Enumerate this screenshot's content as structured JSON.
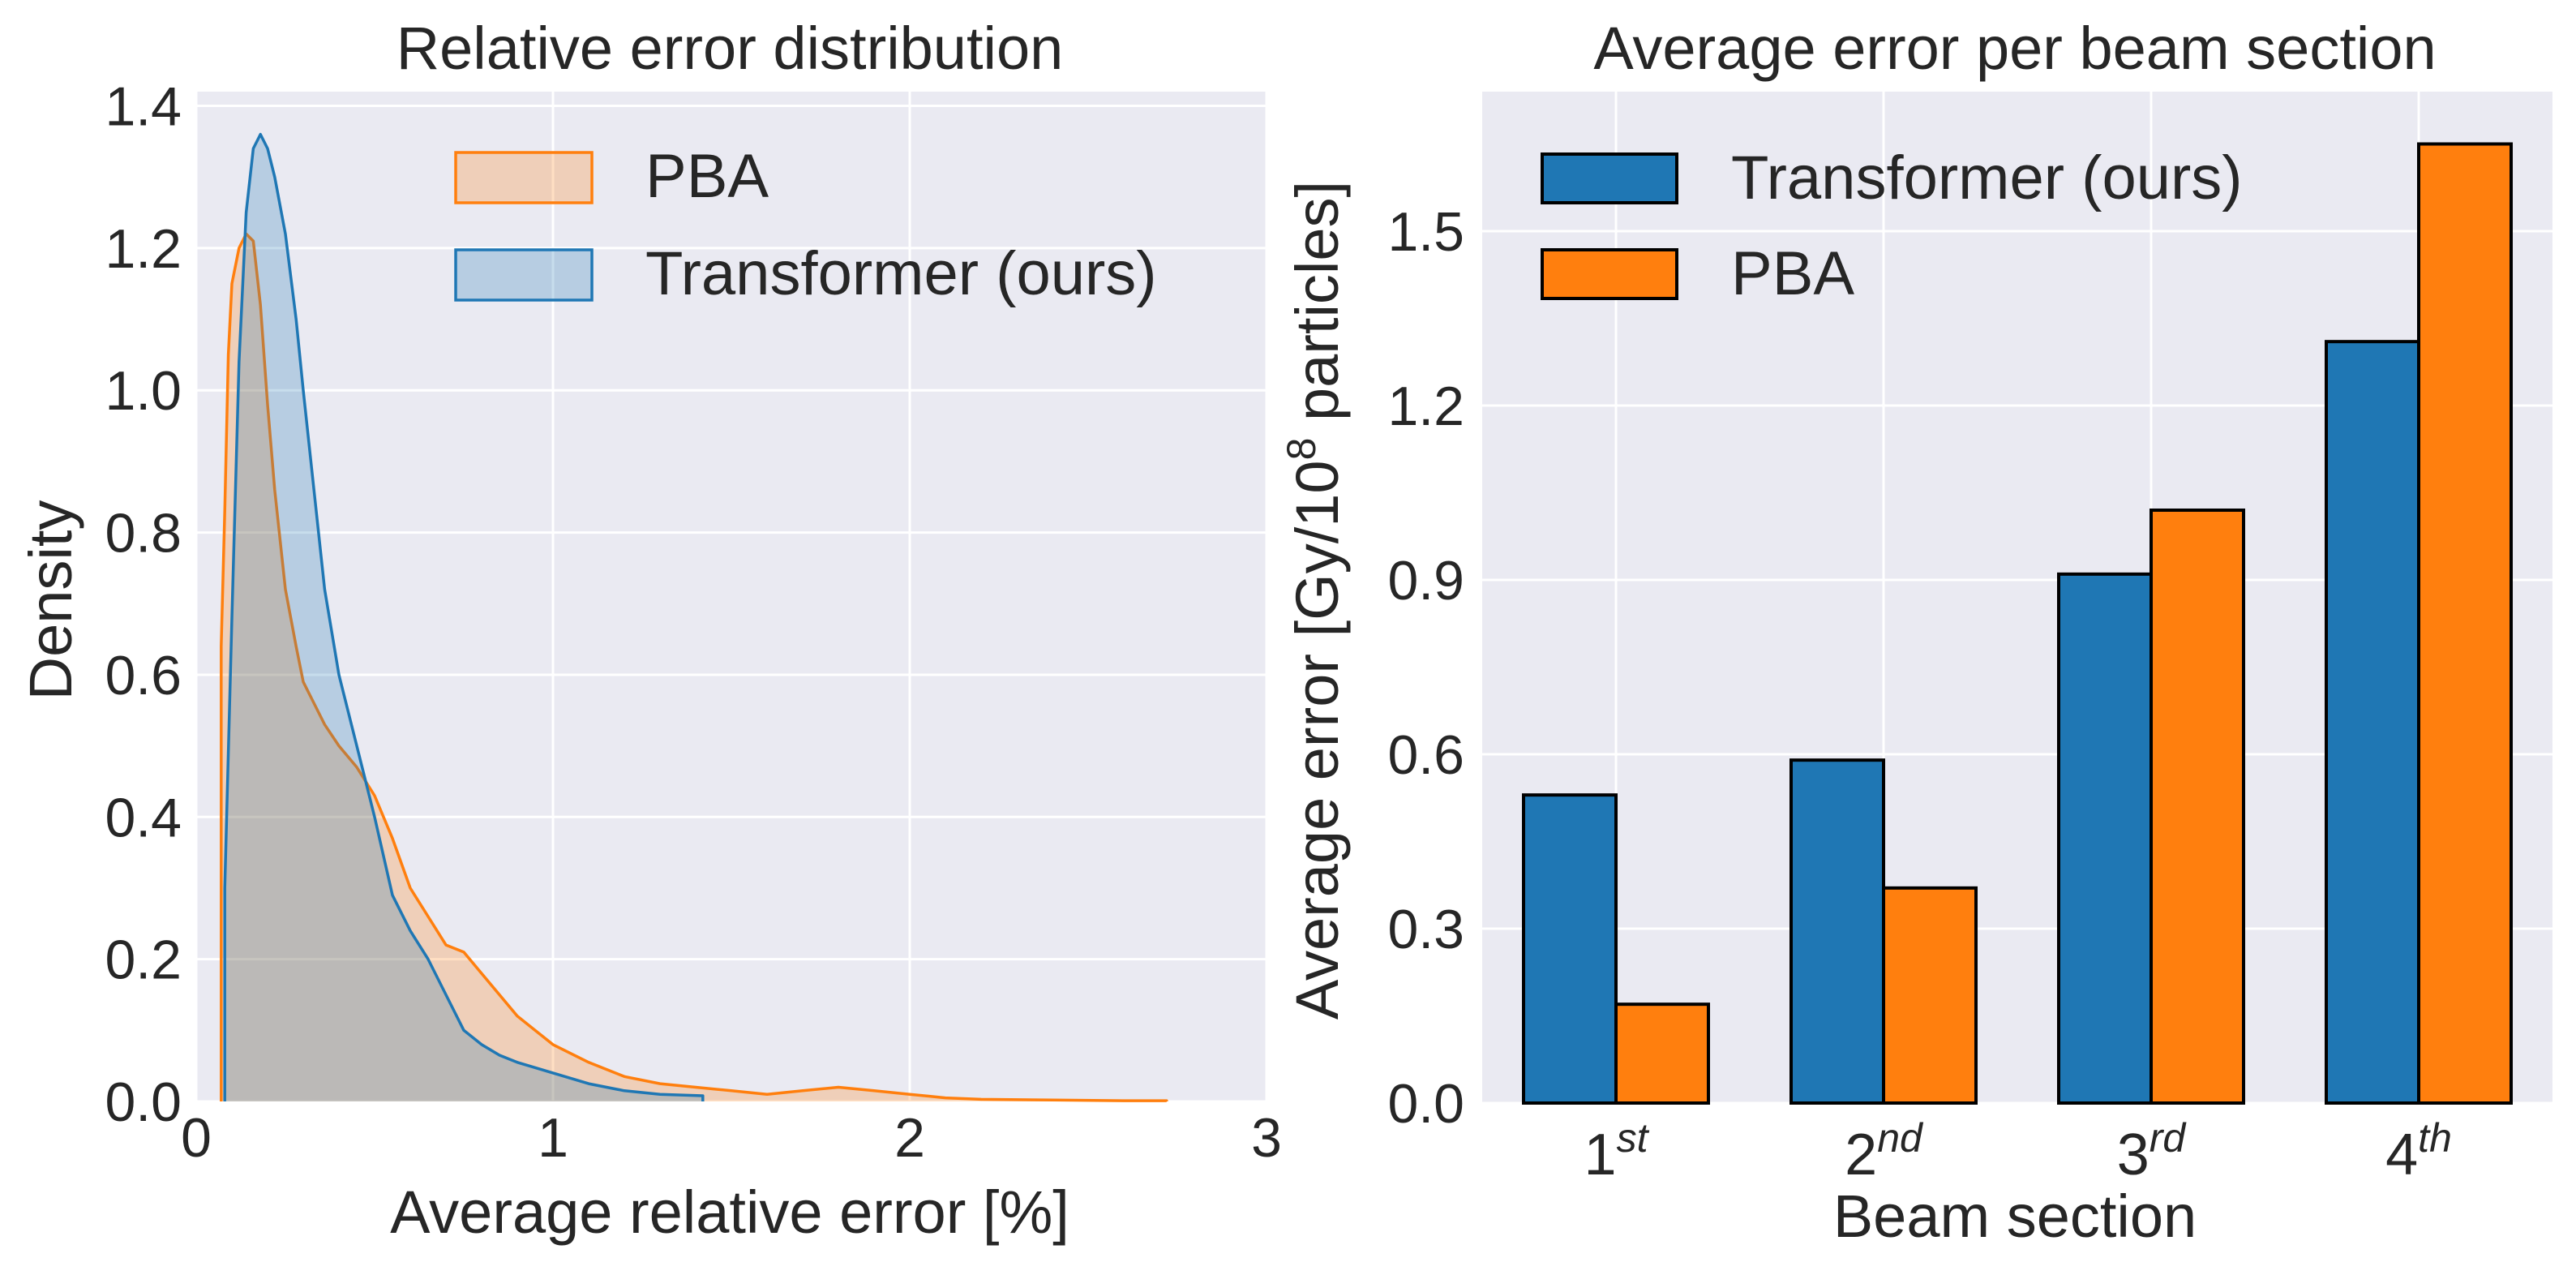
{
  "chart_data": [
    {
      "type": "area",
      "title": "Relative error distribution",
      "xlabel": "Average relative error [%]",
      "ylabel": "Density",
      "xlim": [
        0,
        3
      ],
      "ylim": [
        0,
        1.42
      ],
      "xticks": [
        0,
        1,
        2,
        3
      ],
      "yticks": [
        0.0,
        0.2,
        0.4,
        0.6,
        0.8,
        1.0,
        1.2,
        1.4
      ],
      "xtick_labels": [
        "0",
        "1",
        "2",
        "3"
      ],
      "ytick_labels": [
        "0.0",
        "0.2",
        "0.4",
        "0.6",
        "0.8",
        "1.0",
        "1.2",
        "1.4"
      ],
      "grid": true,
      "legend_position": "top-right",
      "series": [
        {
          "name": "PBA",
          "color": "#ff7f0e",
          "x": [
            0.07,
            0.07,
            0.08,
            0.09,
            0.1,
            0.12,
            0.14,
            0.16,
            0.18,
            0.2,
            0.22,
            0.25,
            0.28,
            0.3,
            0.33,
            0.36,
            0.4,
            0.45,
            0.5,
            0.55,
            0.6,
            0.65,
            0.7,
            0.75,
            0.8,
            0.85,
            0.9,
            1.0,
            1.1,
            1.2,
            1.3,
            1.4,
            1.5,
            1.6,
            1.7,
            1.8,
            1.9,
            2.0,
            2.1,
            2.2,
            2.4,
            2.6,
            2.72,
            2.72
          ],
          "y": [
            0.0,
            0.64,
            0.83,
            1.05,
            1.15,
            1.2,
            1.22,
            1.21,
            1.12,
            0.98,
            0.86,
            0.72,
            0.64,
            0.59,
            0.56,
            0.53,
            0.5,
            0.47,
            0.43,
            0.37,
            0.3,
            0.26,
            0.22,
            0.21,
            0.18,
            0.15,
            0.12,
            0.08,
            0.055,
            0.035,
            0.025,
            0.02,
            0.015,
            0.01,
            0.015,
            0.02,
            0.015,
            0.01,
            0.005,
            0.003,
            0.002,
            0.001,
            0.001,
            0.0
          ]
        },
        {
          "name": "Transformer (ours)",
          "color": "#1f77b4",
          "x": [
            0.08,
            0.08,
            0.1,
            0.12,
            0.14,
            0.16,
            0.18,
            0.2,
            0.22,
            0.25,
            0.28,
            0.3,
            0.33,
            0.36,
            0.4,
            0.45,
            0.5,
            0.55,
            0.6,
            0.65,
            0.7,
            0.75,
            0.8,
            0.85,
            0.9,
            1.0,
            1.1,
            1.2,
            1.3,
            1.42,
            1.42
          ],
          "y": [
            0.0,
            0.3,
            0.68,
            1.04,
            1.25,
            1.34,
            1.36,
            1.34,
            1.3,
            1.22,
            1.1,
            1.0,
            0.86,
            0.72,
            0.6,
            0.5,
            0.4,
            0.29,
            0.24,
            0.2,
            0.15,
            0.1,
            0.08,
            0.065,
            0.055,
            0.04,
            0.025,
            0.015,
            0.01,
            0.008,
            0.0
          ]
        }
      ]
    },
    {
      "type": "bar",
      "title": "Average error per beam section",
      "xlabel": "Beam section",
      "ylabel": "Average error [Gy/10",
      "ylabel_exponent": "8",
      "ylabel_suffix": " particles]",
      "ylim": [
        0,
        1.74
      ],
      "yticks": [
        0.0,
        0.3,
        0.6,
        0.9,
        1.2,
        1.5
      ],
      "ytick_labels": [
        "0.0",
        "0.3",
        "0.6",
        "0.9",
        "1.2",
        "1.5"
      ],
      "grid": true,
      "legend_position": "top-left",
      "categories": [
        {
          "base": "1",
          "sup": "st"
        },
        {
          "base": "2",
          "sup": "nd"
        },
        {
          "base": "3",
          "sup": "rd"
        },
        {
          "base": "4",
          "sup": "th"
        }
      ],
      "series": [
        {
          "name": "Transformer (ours)",
          "color": "#1f77b4",
          "values": [
            0.53,
            0.59,
            0.91,
            1.31
          ]
        },
        {
          "name": "PBA",
          "color": "#ff7f0e",
          "values": [
            0.17,
            0.37,
            1.02,
            1.65
          ]
        }
      ]
    }
  ],
  "style": {
    "axes_background": "#eaeaf2",
    "grid_color": "#ffffff",
    "text_color": "#262626",
    "edge_color": "#000000"
  }
}
